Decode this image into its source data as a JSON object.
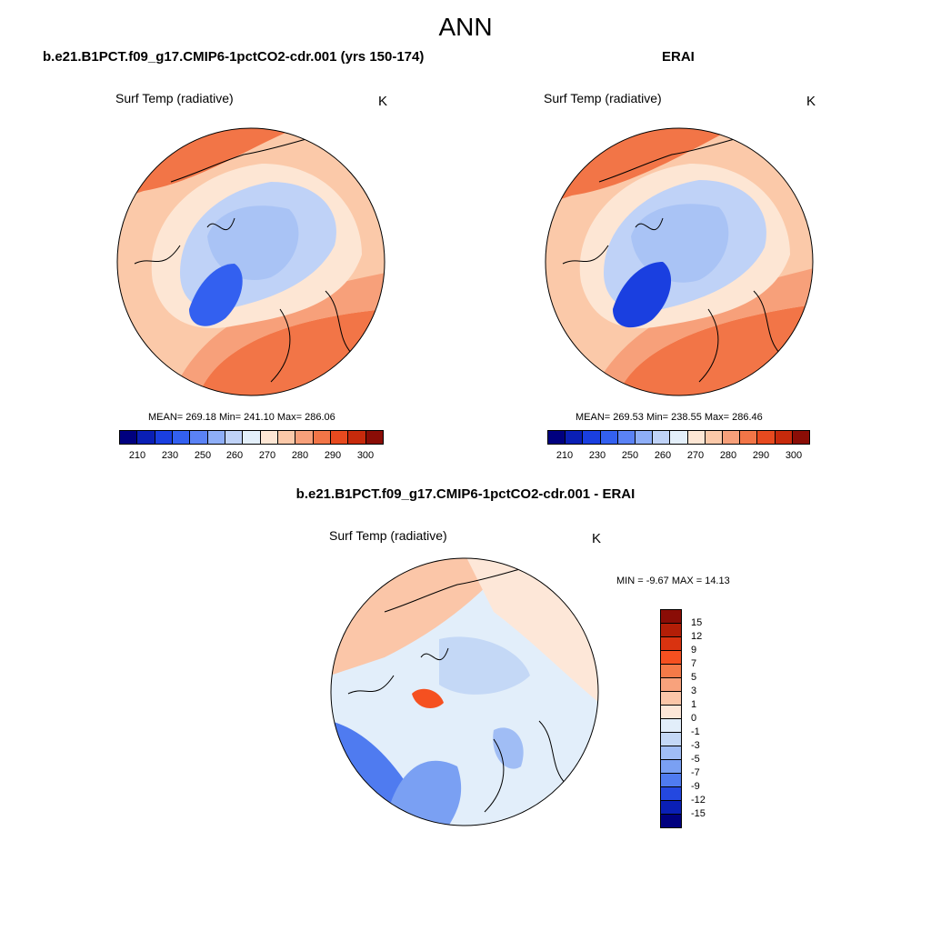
{
  "chart_data": [
    {
      "type": "heatmap",
      "projection": "north polar stereographic",
      "title": "b.e21.B1PCT.f09_g17.CMIP6-1pctCO2-cdr.001 (yrs 150-174)",
      "variable": "Surf Temp (radiative)",
      "units": "K",
      "stats": "MEAN= 269.18  Min= 241.10  Max= 286.06",
      "mean": 269.18,
      "min": 241.1,
      "max": 286.06,
      "colorbar_ticks": [
        "210",
        "230",
        "250",
        "260",
        "270",
        "280",
        "290",
        "300"
      ]
    },
    {
      "type": "heatmap",
      "projection": "north polar stereographic",
      "title": "ERAI",
      "variable": "Surf Temp (radiative)",
      "units": "K",
      "stats": "MEAN= 269.53  Min= 238.55  Max= 286.46",
      "mean": 269.53,
      "min": 238.55,
      "max": 286.46,
      "colorbar_ticks": [
        "210",
        "230",
        "250",
        "260",
        "270",
        "280",
        "290",
        "300"
      ]
    },
    {
      "type": "heatmap",
      "projection": "north polar stereographic",
      "title": "b.e21.B1PCT.f09_g17.CMIP6-1pctCO2-cdr.001 - ERAI",
      "variable": "Surf Temp (radiative)",
      "units": "K",
      "stats": "MIN =  -9.67 MAX =  14.13",
      "min": -9.67,
      "max": 14.13,
      "colorbar_ticks": [
        "15",
        "12",
        "9",
        "7",
        "5",
        "3",
        "1",
        "0",
        "-1",
        "-3",
        "-5",
        "-7",
        "-9",
        "-12",
        "-15"
      ]
    }
  ],
  "figure": {
    "title": "ANN"
  },
  "colors": {
    "abs_scale": [
      "#00007f",
      "#0a1fb5",
      "#1a3fe0",
      "#3360f0",
      "#5a82f5",
      "#8eaef7",
      "#bfd2f7",
      "#e3effa",
      "#fde6d4",
      "#fbc9a9",
      "#f7a07a",
      "#f27547",
      "#e74a1f",
      "#c72a0c",
      "#8a0d06"
    ],
    "diff_scale": [
      "#8a0d06",
      "#b31e07",
      "#d93310",
      "#f55020",
      "#f57a48",
      "#f8a27c",
      "#fbc6a8",
      "#fde7d8",
      "#e2eefa",
      "#c4d8f6",
      "#a0bdf5",
      "#7aa0f3",
      "#4f7bf0",
      "#2448e0",
      "#0a1fb5",
      "#00007f"
    ]
  }
}
